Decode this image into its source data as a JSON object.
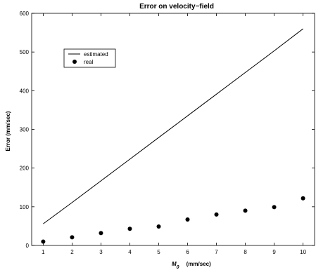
{
  "chart_data": {
    "type": "line",
    "title": "Error on velocity−field",
    "xlabel_main": "M",
    "xlabel_sub": "0",
    "xlabel_unit": "(mm/sec)",
    "ylabel": "Error (mm/sec)",
    "xlim": [
      0.6,
      10.4
    ],
    "ylim": [
      0,
      600
    ],
    "xticks": [
      1,
      2,
      3,
      4,
      5,
      6,
      7,
      8,
      9,
      10
    ],
    "yticks": [
      0,
      100,
      200,
      300,
      400,
      500,
      600
    ],
    "grid": false,
    "legend_position": "top-left",
    "x": [
      1,
      2,
      3,
      4,
      5,
      6,
      7,
      8,
      9,
      10
    ],
    "series": [
      {
        "name": "estimated",
        "style": "line",
        "color": "#000000",
        "values": [
          56,
          111,
          167,
          223,
          279,
          335,
          391,
          447,
          503,
          560
        ]
      },
      {
        "name": "real",
        "style": "marker",
        "color": "#000000",
        "values": [
          10,
          21,
          32,
          43,
          49,
          67,
          80,
          90,
          99,
          122
        ]
      }
    ]
  }
}
